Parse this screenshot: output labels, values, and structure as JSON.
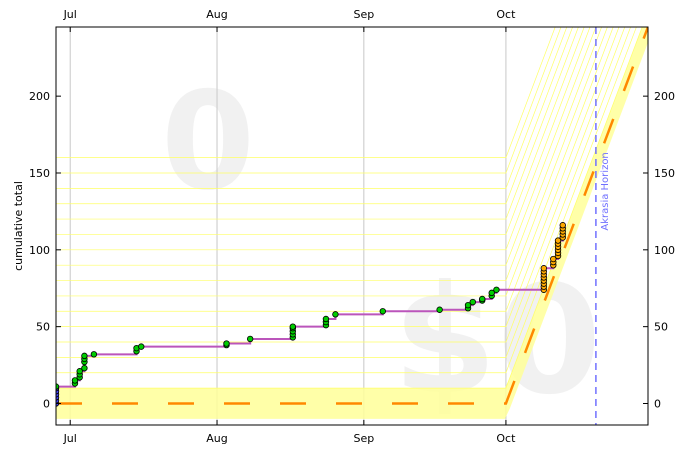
{
  "chart_data": {
    "type": "scatter",
    "title": "",
    "ylabel": "cumulative total",
    "xlabel": "",
    "x_axis": {
      "type": "date",
      "range": [
        "2024-06-28",
        "2024-10-31"
      ],
      "ticks": [
        {
          "date": "2024-07-01",
          "label": "Jul"
        },
        {
          "date": "2024-08-01",
          "label": "Aug"
        },
        {
          "date": "2024-09-01",
          "label": "Sep"
        },
        {
          "date": "2024-10-01",
          "label": "Oct"
        }
      ]
    },
    "y_axis": {
      "range": [
        -14,
        245
      ],
      "ticks": [
        0,
        50,
        100,
        150,
        200
      ]
    },
    "watermarks": {
      "goal": "0",
      "pledge": "$0"
    },
    "horizon": {
      "date": "2024-10-20",
      "label": "Akrasia Horizon",
      "color": "#7070ff"
    },
    "colors": {
      "road_band": "#ffff99",
      "grid_line": "#ffff66",
      "road_center": "#ff8800",
      "trend_line": "#bb55bb",
      "point_pre": "#4444ff",
      "point_main": "#00cc00",
      "point_after": "#ffaa00"
    },
    "road": [
      {
        "date": "2024-06-28",
        "value": 0
      },
      {
        "date": "2024-10-01",
        "value": 0
      },
      {
        "date": "2024-10-31",
        "value": 245
      }
    ],
    "series": [
      {
        "role": "pre-start",
        "points": [
          {
            "date": "2024-06-28",
            "value": 0
          },
          {
            "date": "2024-06-28",
            "value": 2
          },
          {
            "date": "2024-06-28",
            "value": 4
          },
          {
            "date": "2024-06-28",
            "value": 6
          },
          {
            "date": "2024-06-28",
            "value": 8
          },
          {
            "date": "2024-06-28",
            "value": 10
          }
        ]
      },
      {
        "role": "main",
        "points": [
          {
            "date": "2024-06-28",
            "value": 11
          },
          {
            "date": "2024-07-02",
            "value": 13
          },
          {
            "date": "2024-07-02",
            "value": 15
          },
          {
            "date": "2024-07-03",
            "value": 17
          },
          {
            "date": "2024-07-03",
            "value": 19
          },
          {
            "date": "2024-07-03",
            "value": 21
          },
          {
            "date": "2024-07-04",
            "value": 23
          },
          {
            "date": "2024-07-04",
            "value": 27
          },
          {
            "date": "2024-07-04",
            "value": 29
          },
          {
            "date": "2024-07-04",
            "value": 31
          },
          {
            "date": "2024-07-06",
            "value": 32
          },
          {
            "date": "2024-07-15",
            "value": 34
          },
          {
            "date": "2024-07-15",
            "value": 36
          },
          {
            "date": "2024-07-16",
            "value": 37
          },
          {
            "date": "2024-08-03",
            "value": 38
          },
          {
            "date": "2024-08-03",
            "value": 39
          },
          {
            "date": "2024-08-08",
            "value": 42
          },
          {
            "date": "2024-08-17",
            "value": 43
          },
          {
            "date": "2024-08-17",
            "value": 45
          },
          {
            "date": "2024-08-17",
            "value": 47
          },
          {
            "date": "2024-08-17",
            "value": 49
          },
          {
            "date": "2024-08-17",
            "value": 50
          },
          {
            "date": "2024-08-24",
            "value": 51
          },
          {
            "date": "2024-08-24",
            "value": 53
          },
          {
            "date": "2024-08-24",
            "value": 55
          },
          {
            "date": "2024-08-26",
            "value": 58
          },
          {
            "date": "2024-09-05",
            "value": 60
          },
          {
            "date": "2024-09-17",
            "value": 61
          },
          {
            "date": "2024-09-23",
            "value": 62
          },
          {
            "date": "2024-09-23",
            "value": 64
          },
          {
            "date": "2024-09-24",
            "value": 66
          },
          {
            "date": "2024-09-26",
            "value": 67
          },
          {
            "date": "2024-09-26",
            "value": 68
          },
          {
            "date": "2024-09-28",
            "value": 70
          },
          {
            "date": "2024-09-28",
            "value": 72
          },
          {
            "date": "2024-09-29",
            "value": 74
          }
        ]
      },
      {
        "role": "after",
        "points": [
          {
            "date": "2024-10-09",
            "value": 74
          },
          {
            "date": "2024-10-09",
            "value": 76
          },
          {
            "date": "2024-10-09",
            "value": 78
          },
          {
            "date": "2024-10-09",
            "value": 80
          },
          {
            "date": "2024-10-09",
            "value": 82
          },
          {
            "date": "2024-10-09",
            "value": 84
          },
          {
            "date": "2024-10-09",
            "value": 86
          },
          {
            "date": "2024-10-09",
            "value": 88
          },
          {
            "date": "2024-10-11",
            "value": 90
          },
          {
            "date": "2024-10-11",
            "value": 92
          },
          {
            "date": "2024-10-11",
            "value": 94
          },
          {
            "date": "2024-10-12",
            "value": 96
          },
          {
            "date": "2024-10-12",
            "value": 98
          },
          {
            "date": "2024-10-12",
            "value": 100
          },
          {
            "date": "2024-10-12",
            "value": 102
          },
          {
            "date": "2024-10-12",
            "value": 104
          },
          {
            "date": "2024-10-12",
            "value": 106
          },
          {
            "date": "2024-10-13",
            "value": 108
          },
          {
            "date": "2024-10-13",
            "value": 110
          },
          {
            "date": "2024-10-13",
            "value": 112
          },
          {
            "date": "2024-10-13",
            "value": 114
          },
          {
            "date": "2024-10-13",
            "value": 116
          }
        ]
      }
    ]
  }
}
